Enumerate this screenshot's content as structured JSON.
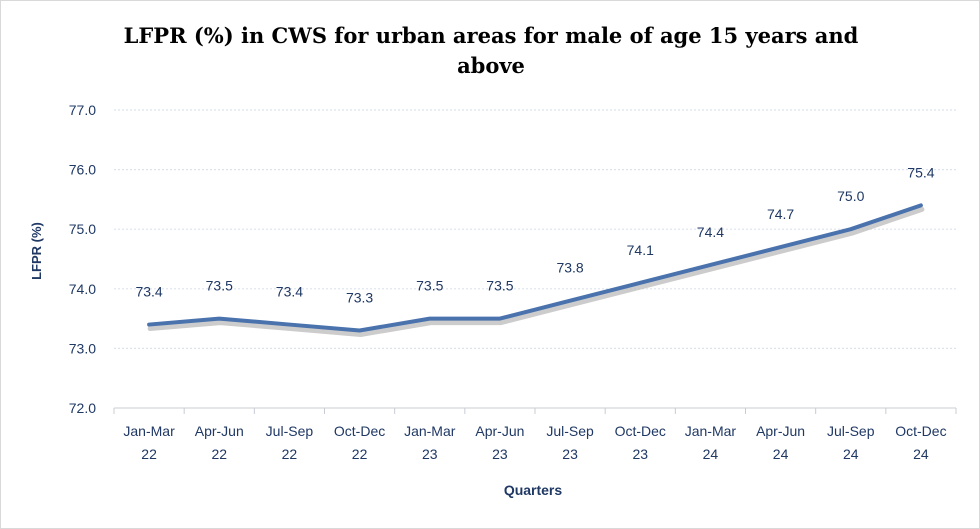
{
  "chart_data": {
    "type": "line",
    "title_lines": [
      "LFPR (%) in CWS for urban  areas for male of age 15 years and",
      "above"
    ],
    "xlabel": "Quarters",
    "ylabel": "LFPR (%)",
    "ylim": [
      72.0,
      77.0
    ],
    "yticks": [
      "72.0",
      "73.0",
      "74.0",
      "75.0",
      "76.0",
      "77.0"
    ],
    "grid": true,
    "legend": "none",
    "categories": [
      [
        "Jan-Mar",
        "22"
      ],
      [
        "Apr-Jun",
        "22"
      ],
      [
        "Jul-Sep",
        "22"
      ],
      [
        "Oct-Dec",
        "22"
      ],
      [
        "Jan-Mar",
        "23"
      ],
      [
        "Apr-Jun",
        "23"
      ],
      [
        "Jul-Sep",
        "23"
      ],
      [
        "Oct-Dec",
        "23"
      ],
      [
        "Jan-Mar",
        "24"
      ],
      [
        "Apr-Jun",
        "24"
      ],
      [
        "Jul-Sep",
        "24"
      ],
      [
        "Oct-Dec",
        "24"
      ]
    ],
    "values": [
      73.4,
      73.5,
      73.4,
      73.3,
      73.5,
      73.5,
      73.8,
      74.1,
      74.4,
      74.7,
      75.0,
      75.4
    ],
    "value_labels": [
      "73.4",
      "73.5",
      "73.4",
      "73.3",
      "73.5",
      "73.5",
      "73.8",
      "74.1",
      "74.4",
      "74.7",
      "75.0",
      "75.4"
    ],
    "colors": {
      "line": "#4a72ad",
      "shadow": "#bfbfbf",
      "axis_text": "#1f3864",
      "label_text": "#1f3864",
      "grid": "#dce3ee"
    }
  }
}
